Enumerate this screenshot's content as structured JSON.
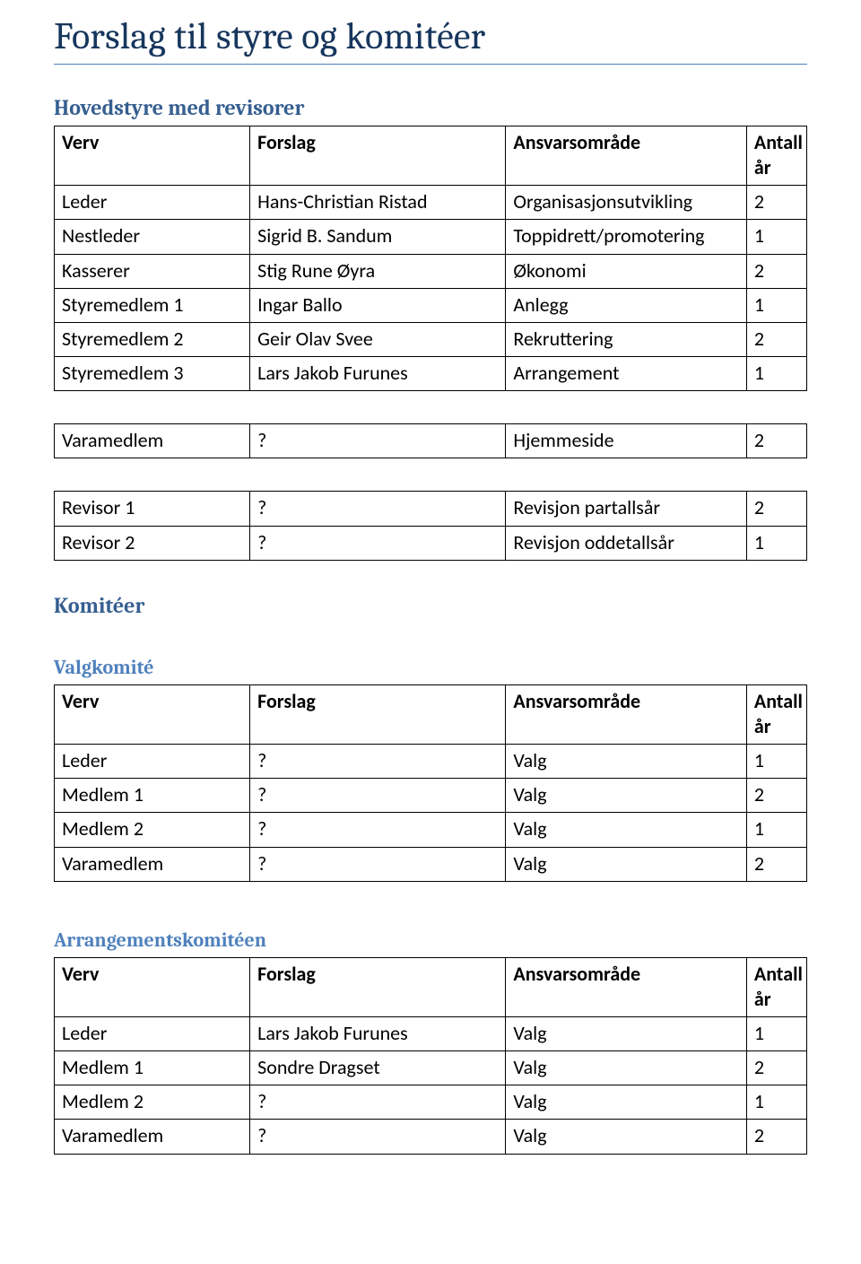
{
  "colors": {
    "title": "#17365d",
    "rule": "#4f81bd",
    "h2": "#365f91",
    "h3": "#4f81bd",
    "border": "#000000",
    "text": "#000000",
    "background": "#ffffff"
  },
  "fonts": {
    "title_size_pt": 32,
    "h2_size_pt": 18,
    "h3_size_pt": 17,
    "cell_size_pt": 16,
    "heading_family": "Cambria",
    "body_family": "Calibri"
  },
  "title": "Forslag til styre og komitéer",
  "headers": {
    "verv": "Verv",
    "forslag": "Forslag",
    "omrade": "Ansvarsområde",
    "antall": "Antall år"
  },
  "sections": {
    "hovedstyre": {
      "heading": "Hovedstyre med revisorer",
      "rows": [
        {
          "verv": "Leder",
          "forslag": "Hans-Christian Ristad",
          "omrade": "Organisasjonsutvikling",
          "antall": "2"
        },
        {
          "verv": "Nestleder",
          "forslag": "Sigrid B. Sandum",
          "omrade": "Toppidrett/promotering",
          "antall": "1"
        },
        {
          "verv": "Kasserer",
          "forslag": "Stig Rune Øyra",
          "omrade": "Økonomi",
          "antall": "2"
        },
        {
          "verv": "Styremedlem 1",
          "forslag": "Ingar Ballo",
          "omrade": "Anlegg",
          "antall": "1"
        },
        {
          "verv": "Styremedlem 2",
          "forslag": "Geir Olav Svee",
          "omrade": "Rekruttering",
          "antall": "2"
        },
        {
          "verv": "Styremedlem 3",
          "forslag": "Lars Jakob Furunes",
          "omrade": "Arrangement",
          "antall": "1"
        }
      ]
    },
    "varamedlem": {
      "rows": [
        {
          "verv": "Varamedlem",
          "forslag": "?",
          "omrade": "Hjemmeside",
          "antall": "2"
        }
      ]
    },
    "revisor": {
      "rows": [
        {
          "verv": "Revisor 1",
          "forslag": "?",
          "omrade": "Revisjon partallsår",
          "antall": "2"
        },
        {
          "verv": "Revisor 2",
          "forslag": "?",
          "omrade": "Revisjon oddetallsår",
          "antall": "1"
        }
      ]
    },
    "komiteer": {
      "heading": "Komitéer"
    },
    "valgkomite": {
      "heading": "Valgkomité",
      "rows": [
        {
          "verv": "Leder",
          "forslag": "?",
          "omrade": "Valg",
          "antall": "1"
        },
        {
          "verv": "Medlem 1",
          "forslag": "?",
          "omrade": "Valg",
          "antall": "2"
        },
        {
          "verv": "Medlem 2",
          "forslag": "?",
          "omrade": "Valg",
          "antall": "1"
        },
        {
          "verv": "Varamedlem",
          "forslag": "?",
          "omrade": "Valg",
          "antall": "2"
        }
      ]
    },
    "arrangement": {
      "heading": "Arrangementskomitéen",
      "rows": [
        {
          "verv": "Leder",
          "forslag": "Lars Jakob Furunes",
          "omrade": "Valg",
          "antall": "1"
        },
        {
          "verv": "Medlem 1",
          "forslag": "Sondre Dragset",
          "omrade": "Valg",
          "antall": "2"
        },
        {
          "verv": "Medlem 2",
          "forslag": "?",
          "omrade": "Valg",
          "antall": "1"
        },
        {
          "verv": "Varamedlem",
          "forslag": "?",
          "omrade": "Valg",
          "antall": "2"
        }
      ]
    }
  }
}
